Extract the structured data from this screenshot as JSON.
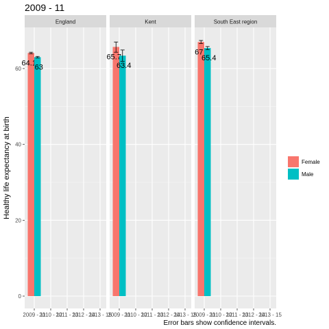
{
  "chart_data": {
    "type": "bar",
    "title": "2009 - 11",
    "ylabel": "Healthy life expectancy at birth",
    "xlabel": "",
    "caption": "Error bars show confidence intervals.",
    "ylim": [
      0,
      70
    ],
    "yticks": [
      0,
      20,
      40,
      60
    ],
    "x_categories": [
      "2009 - 11",
      "2010 - 12",
      "2011 - 13",
      "2012 - 14",
      "2013 - 15"
    ],
    "legend": {
      "position": "right",
      "entries": [
        "Female",
        "Male"
      ]
    },
    "colors": {
      "Female": "#F8766D",
      "Male": "#00BFC4"
    },
    "grid": true,
    "facets": [
      {
        "name": "England",
        "bars": [
          {
            "series": "Female",
            "x": "2009 - 11",
            "value": 64.1,
            "lower": 63.9,
            "upper": 64.3
          },
          {
            "series": "Male",
            "x": "2009 - 11",
            "value": 63,
            "lower": 62.8,
            "upper": 63.2
          }
        ]
      },
      {
        "name": "Kent",
        "bars": [
          {
            "series": "Female",
            "x": "2009 - 11",
            "value": 65.7,
            "lower": 64.3,
            "upper": 67.0
          },
          {
            "series": "Male",
            "x": "2009 - 11",
            "value": 63.4,
            "lower": 61.9,
            "upper": 64.9
          }
        ]
      },
      {
        "name": "South East region",
        "bars": [
          {
            "series": "Female",
            "x": "2009 - 11",
            "value": 67,
            "lower": 66.6,
            "upper": 67.4
          },
          {
            "series": "Male",
            "x": "2009 - 11",
            "value": 65.4,
            "lower": 65.0,
            "upper": 65.8
          }
        ]
      }
    ]
  }
}
